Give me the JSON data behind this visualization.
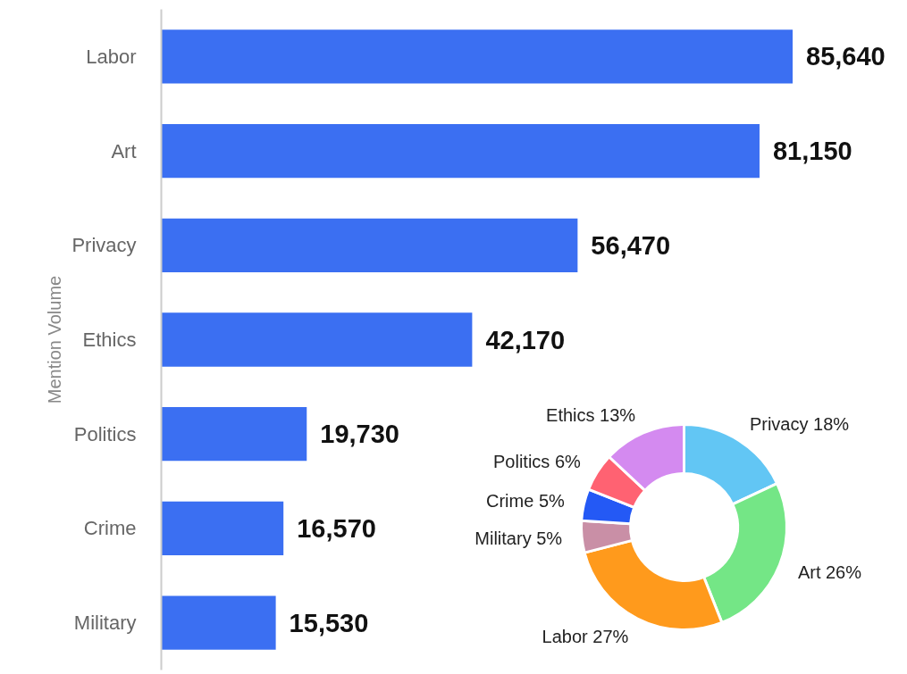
{
  "chart_data": [
    {
      "type": "bar",
      "orientation": "horizontal",
      "ylabel": "Mention Volume",
      "categories": [
        "Labor",
        "Art",
        "Privacy",
        "Ethics",
        "Politics",
        "Crime",
        "Military"
      ],
      "values": [
        85640,
        81150,
        56470,
        42170,
        19730,
        16570,
        15530
      ],
      "value_labels": [
        "85,640",
        "81,150",
        "56,470",
        "42,170",
        "19,730",
        "16,570",
        "15,530"
      ],
      "color": "#3b6ff2",
      "tick_labels": "y",
      "grid": false
    },
    {
      "type": "donut",
      "categories": [
        "Privacy",
        "Art",
        "Labor",
        "Military",
        "Crime",
        "Politics",
        "Ethics"
      ],
      "values": [
        18,
        26,
        27,
        5,
        5,
        6,
        13
      ],
      "value_labels": [
        "18%",
        "26%",
        "27%",
        "5%",
        "5%",
        "6%",
        "13%"
      ],
      "colors": [
        "#62c6f4",
        "#74e686",
        "#ff9a1c",
        "#c98fa6",
        "#2459f5",
        "#ff6272",
        "#d48af0"
      ]
    }
  ]
}
